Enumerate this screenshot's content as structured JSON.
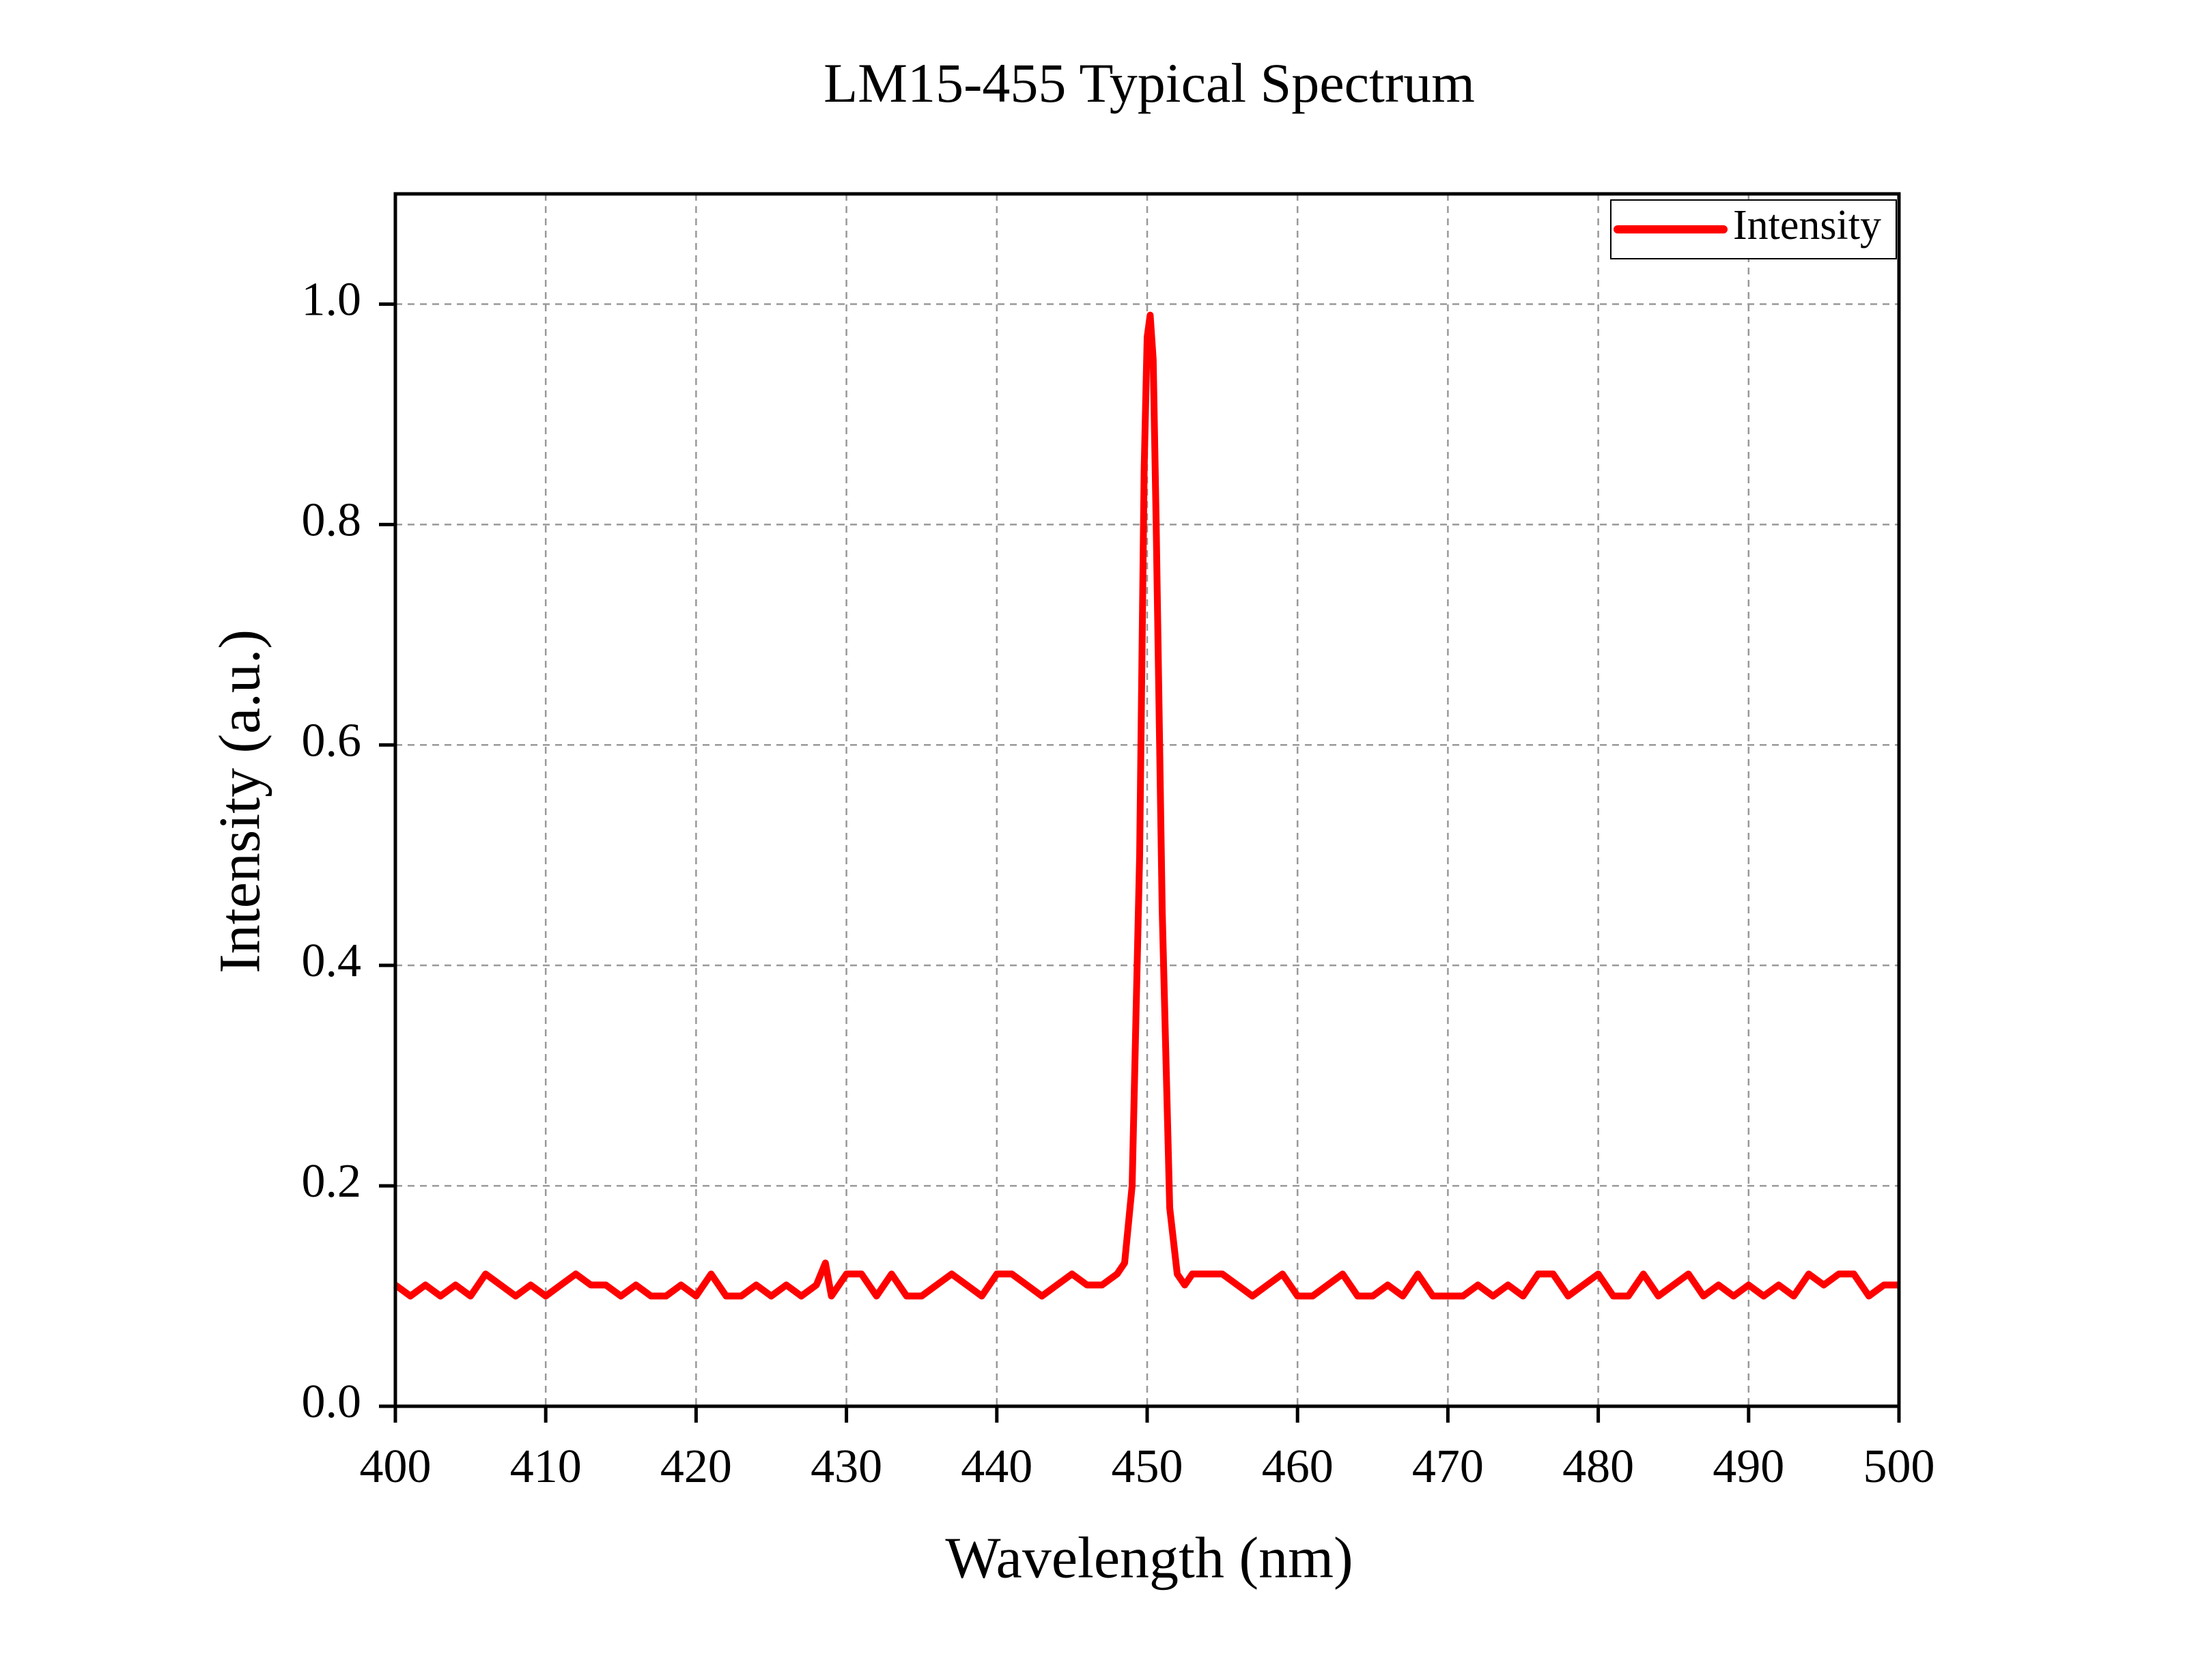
{
  "chart_data": {
    "type": "line",
    "title": "LM15-455 Typical Spectrum",
    "x_label": "Wavelength (nm)",
    "y_label": "Intensity (a.u.)",
    "xlim": [
      400,
      500
    ],
    "ylim": [
      0,
      1.1
    ],
    "xticks": [
      400,
      410,
      420,
      430,
      440,
      450,
      460,
      470,
      480,
      490,
      500
    ],
    "yticks": [
      {
        "value": 0,
        "label": "0.0"
      },
      0.2,
      0.4,
      0.6,
      0.8,
      {
        "value": 1,
        "label": "1.0"
      }
    ],
    "grid": true,
    "legend": "upper right",
    "x": [
      400,
      401,
      402,
      403,
      404,
      405,
      406,
      407,
      408,
      409,
      410,
      411,
      412,
      413,
      414,
      415,
      416,
      417,
      418,
      419,
      420,
      421,
      422,
      423,
      424,
      425,
      426,
      427,
      428,
      428.6,
      429,
      430,
      431,
      432,
      433,
      434,
      435,
      436,
      437,
      438,
      439,
      440,
      441,
      442,
      443,
      444,
      445,
      446,
      447,
      448,
      448.5,
      449,
      449.5,
      449.8,
      450,
      450.2,
      450.4,
      450.6,
      451,
      451.5,
      452,
      452.5,
      453,
      454,
      455,
      456,
      457,
      458,
      459,
      460,
      461,
      462,
      463,
      464,
      465,
      466,
      467,
      468,
      469,
      470,
      471,
      472,
      473,
      474,
      475,
      476,
      477,
      478,
      479,
      480,
      481,
      482,
      483,
      484,
      485,
      486,
      487,
      488,
      489,
      490,
      491,
      492,
      493,
      494,
      495,
      496,
      497,
      498,
      499,
      500
    ],
    "series": [
      {
        "name": "Intensity",
        "color": "#ff0000",
        "values": [
          0.11,
          0.1,
          0.11,
          0.1,
          0.11,
          0.1,
          0.12,
          0.11,
          0.1,
          0.11,
          0.1,
          0.11,
          0.12,
          0.11,
          0.11,
          0.1,
          0.11,
          0.1,
          0.1,
          0.11,
          0.1,
          0.12,
          0.1,
          0.1,
          0.11,
          0.1,
          0.11,
          0.1,
          0.11,
          0.13,
          0.1,
          0.12,
          0.12,
          0.1,
          0.12,
          0.1,
          0.1,
          0.11,
          0.12,
          0.11,
          0.1,
          0.12,
          0.12,
          0.11,
          0.1,
          0.11,
          0.12,
          0.11,
          0.11,
          0.12,
          0.13,
          0.2,
          0.5,
          0.85,
          0.97,
          0.99,
          0.95,
          0.8,
          0.45,
          0.18,
          0.12,
          0.11,
          0.12,
          0.12,
          0.12,
          0.11,
          0.1,
          0.11,
          0.12,
          0.1,
          0.1,
          0.11,
          0.12,
          0.1,
          0.1,
          0.11,
          0.1,
          0.12,
          0.1,
          0.1,
          0.1,
          0.11,
          0.1,
          0.11,
          0.1,
          0.12,
          0.12,
          0.1,
          0.11,
          0.12,
          0.1,
          0.1,
          0.12,
          0.1,
          0.11,
          0.12,
          0.1,
          0.11,
          0.1,
          0.11,
          0.1,
          0.11,
          0.1,
          0.12,
          0.11,
          0.12,
          0.12,
          0.1,
          0.11,
          0.11
        ]
      }
    ]
  }
}
